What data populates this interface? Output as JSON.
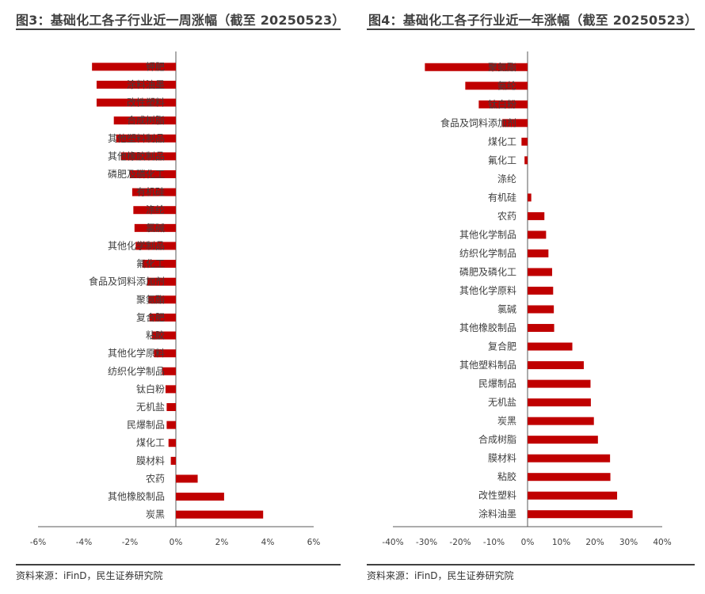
{
  "colors": {
    "bar": "#c00000",
    "axis": "#595959",
    "text": "#404040"
  },
  "charts": [
    {
      "title": "图3：基础化工各子行业近一周涨幅（截至 20250523）",
      "source": "资料来源：iFinD，民生证券研究院",
      "x_ticks": [
        "-6%",
        "-4%",
        "-2%",
        "0%",
        "2%",
        "4%",
        "6%"
      ]
    },
    {
      "title": "图4：基础化工各子行业近一年涨幅（截至 20250523）",
      "source": "资料来源：iFinD，民生证券研究院",
      "x_ticks": [
        "-40%",
        "-30%",
        "-20%",
        "-10%",
        "0%",
        "10%",
        "20%",
        "30%",
        "40%"
      ]
    }
  ],
  "chart_data": [
    {
      "type": "bar",
      "orientation": "horizontal",
      "xlim": [
        -6,
        6
      ],
      "unit": "%",
      "categories": [
        "钾肥",
        "涂料油墨",
        "改性塑料",
        "合成树脂",
        "其他塑料制品",
        "其他橡胶制品",
        "磷肥及磷化工",
        "有机硅",
        "涤纶",
        "氯碱",
        "其他化学制品",
        "氟化工",
        "食品及饲料添加剂",
        "聚氨酯",
        "复合肥",
        "粘胶",
        "其他化学原料",
        "纺织化学制品",
        "钛白粉",
        "无机盐",
        "民爆制品",
        "煤化工",
        "膜材料",
        "农药",
        "其他橡胶制品",
        "炭黑"
      ],
      "values": [
        -3.65,
        -3.45,
        -3.45,
        -2.7,
        -2.6,
        -2.4,
        -2.0,
        -1.9,
        -1.85,
        -1.8,
        -1.75,
        -1.45,
        -1.25,
        -1.2,
        -1.15,
        -1.05,
        -0.95,
        -0.6,
        -0.45,
        -0.4,
        -0.4,
        -0.32,
        -0.22,
        0.95,
        2.1,
        3.8
      ]
    },
    {
      "type": "bar",
      "orientation": "horizontal",
      "xlim": [
        -40,
        40
      ],
      "unit": "%",
      "categories": [
        "聚氨酯",
        "氨纶",
        "钛白粉",
        "食品及饲料添加剂",
        "煤化工",
        "氟化工",
        "涤纶",
        "有机硅",
        "农药",
        "其他化学制品",
        "纺织化学制品",
        "磷肥及磷化工",
        "其他化学原料",
        "氯碱",
        "其他橡胶制品",
        "复合肥",
        "其他塑料制品",
        "民爆制品",
        "无机盐",
        "炭黑",
        "合成树脂",
        "膜材料",
        "粘胶",
        "改性塑料",
        "涂料油墨"
      ],
      "values": [
        -30.5,
        -18.5,
        -14.5,
        -7.5,
        -1.8,
        -0.9,
        0.0,
        1.1,
        5.0,
        5.5,
        6.2,
        7.3,
        7.6,
        7.8,
        7.9,
        13.3,
        16.7,
        18.7,
        18.8,
        19.7,
        20.9,
        24.5,
        24.6,
        26.6,
        31.2
      ]
    }
  ]
}
